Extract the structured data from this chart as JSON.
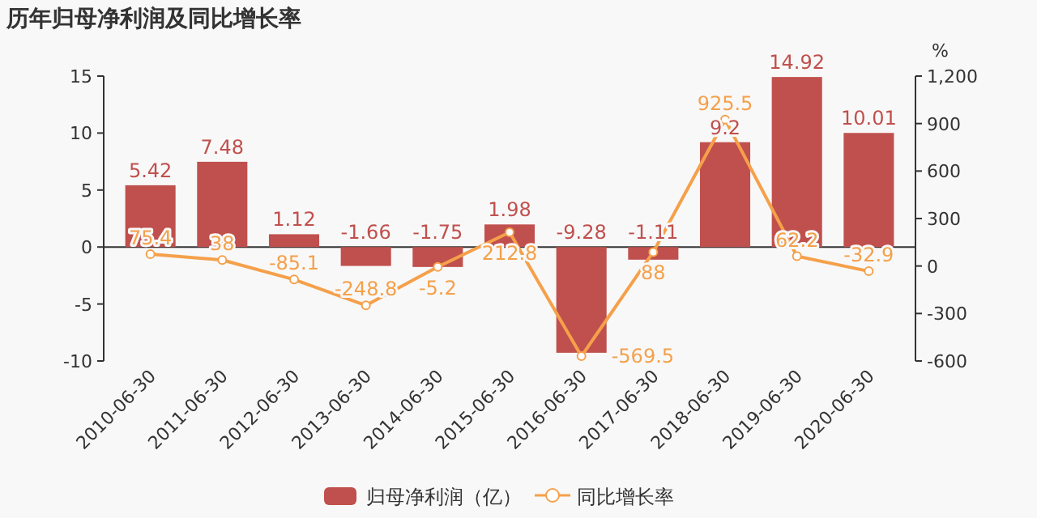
{
  "chart_data": {
    "type": "bar",
    "title": "历年归母净利润及同比增长率",
    "y2label": "%",
    "categories": [
      "2010-06-30",
      "2011-06-30",
      "2012-06-30",
      "2013-06-30",
      "2014-06-30",
      "2015-06-30",
      "2016-06-30",
      "2017-06-30",
      "2018-06-30",
      "2019-06-30",
      "2020-06-30"
    ],
    "series": [
      {
        "name": "归母净利润（亿）",
        "color": "#c0504d",
        "values": [
          5.42,
          7.48,
          1.12,
          -1.66,
          -1.75,
          1.98,
          -9.28,
          -1.11,
          9.2,
          14.92,
          10.01
        ]
      },
      {
        "name": "同比增长率",
        "type": "line",
        "axis": "y2",
        "color": "#f5a04a",
        "values": [
          75.4,
          38,
          -85.1,
          -248.8,
          -5.2,
          212.8,
          -569.5,
          88,
          925.5,
          62.2,
          -32.9
        ]
      }
    ],
    "ylim": [
      -10,
      15
    ],
    "yticks": [
      -10,
      -5,
      0,
      5,
      10,
      15
    ],
    "y2lim": [
      -600,
      1200
    ],
    "y2ticks": [
      -600,
      -300,
      0,
      300,
      600,
      900,
      {
        "value": 1200,
        "label": "1,200"
      }
    ],
    "data_labels": true,
    "legend": "bottom",
    "marker": "circle"
  }
}
